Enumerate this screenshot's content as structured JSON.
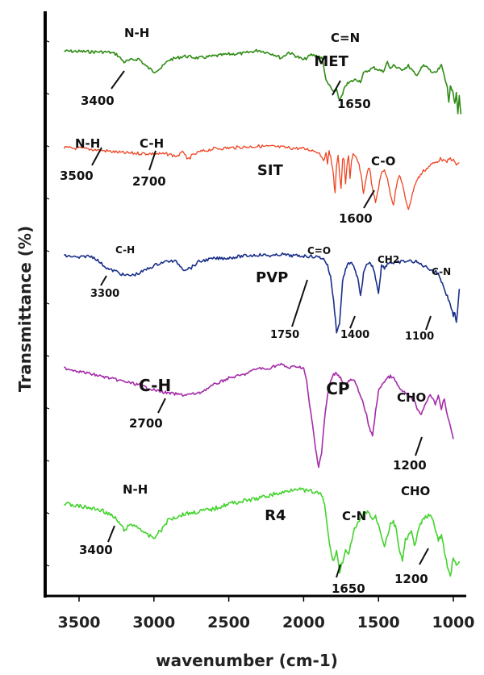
{
  "chart_data": {
    "type": "line",
    "title": "",
    "xlabel": "wavenumber (cm-1)",
    "ylabel": "Transmittance (%)",
    "x_ticks": [
      3500,
      3000,
      2500,
      2000,
      1500,
      1000
    ],
    "xlim": [
      3600,
      900
    ],
    "x_reversed": true,
    "y_ticks_labeled": false,
    "grid": false,
    "series": [
      {
        "name": "MET",
        "color": "#2e8b13",
        "stroke_width": 1.6,
        "label_font": 18,
        "x": [
          3600,
          3500,
          3400,
          3350,
          3300,
          3250,
          3200,
          3150,
          3100,
          3050,
          3000,
          2950,
          2900,
          2800,
          2700,
          2600,
          2500,
          2400,
          2300,
          2200,
          2150,
          2100,
          2000,
          1950,
          1900,
          1880,
          1870,
          1850,
          1820,
          1800,
          1780,
          1760,
          1740,
          1720,
          1700,
          1680,
          1650,
          1620,
          1600,
          1560,
          1530,
          1500,
          1470,
          1440,
          1420,
          1400,
          1380,
          1350,
          1320,
          1300,
          1270,
          1250,
          1220,
          1200,
          1170,
          1150,
          1120,
          1100,
          1080,
          1060,
          1050,
          1040,
          1030,
          1020,
          1010,
          1000,
          990,
          980,
          970,
          960,
          950
        ],
        "y": [
          0.32,
          0.33,
          0.34,
          0.34,
          0.35,
          0.4,
          0.6,
          0.55,
          0.52,
          0.72,
          0.85,
          0.75,
          0.55,
          0.45,
          0.5,
          0.45,
          0.4,
          0.38,
          0.3,
          0.4,
          0.5,
          0.35,
          0.55,
          0.42,
          0.45,
          0.5,
          0.6,
          1.1,
          1.25,
          1.4,
          1.3,
          1.6,
          1.45,
          1.2,
          1.15,
          1.1,
          1.05,
          1.1,
          0.9,
          0.8,
          0.75,
          0.8,
          0.85,
          0.6,
          0.8,
          0.65,
          0.75,
          0.8,
          0.75,
          0.7,
          0.85,
          0.95,
          0.8,
          0.7,
          0.75,
          0.85,
          0.9,
          0.8,
          0.7,
          0.95,
          1.1,
          1.3,
          1.6,
          1.2,
          1.3,
          1.45,
          1.7,
          1.4,
          1.9,
          1.5,
          1.95
        ],
        "label": "MET",
        "label_x": 1930,
        "peaks": [
          {
            "top": "N-H",
            "x": 3300,
            "depth": 0.1,
            "stem_from": 3340,
            "stem_to": 3400,
            "number": "3400"
          },
          {
            "top": "C=N",
            "x": 1760,
            "depth": 0.1,
            "stem_from": 1620,
            "stem_to": 1650,
            "number": "1650"
          }
        ]
      },
      {
        "name": "SIT",
        "color": "#ee4422",
        "stroke_width": 1.3,
        "label_font": 18,
        "x": [
          3600,
          3500,
          3400,
          3300,
          3200,
          3100,
          3000,
          2900,
          2850,
          2800,
          2790,
          2780,
          2750,
          2700,
          2600,
          2500,
          2400,
          2300,
          2200,
          2100,
          2000,
          1950,
          1900,
          1880,
          1860,
          1850,
          1840,
          1830,
          1820,
          1810,
          1800,
          1790,
          1780,
          1770,
          1760,
          1750,
          1740,
          1730,
          1720,
          1710,
          1700,
          1690,
          1680,
          1670,
          1650,
          1630,
          1610,
          1600,
          1580,
          1560,
          1540,
          1520,
          1500,
          1480,
          1460,
          1440,
          1420,
          1400,
          1380,
          1360,
          1340,
          1320,
          1300,
          1280,
          1260,
          1240,
          1220,
          1200,
          1180,
          1150,
          1120,
          1100,
          1080,
          1050,
          1020,
          1000,
          980,
          960
        ],
        "y": [
          0.2,
          0.21,
          0.24,
          0.28,
          0.32,
          0.33,
          0.34,
          0.35,
          0.4,
          0.3,
          0.35,
          0.5,
          0.4,
          0.3,
          0.22,
          0.2,
          0.18,
          0.16,
          0.17,
          0.2,
          0.22,
          0.25,
          0.3,
          0.4,
          0.5,
          0.3,
          0.55,
          0.3,
          0.4,
          0.6,
          0.9,
          1.3,
          0.6,
          0.35,
          0.8,
          1.2,
          0.5,
          0.45,
          1.1,
          0.6,
          0.4,
          0.9,
          0.5,
          0.35,
          0.45,
          0.6,
          1.0,
          1.3,
          0.85,
          0.65,
          1.2,
          1.5,
          1.15,
          0.8,
          0.7,
          0.95,
          1.3,
          1.55,
          1.1,
          0.85,
          1.05,
          1.45,
          1.65,
          1.4,
          1.1,
          0.95,
          0.85,
          0.75,
          0.7,
          0.6,
          0.55,
          0.5,
          0.45,
          0.55,
          0.45,
          0.5,
          0.6,
          0.55
        ],
        "label": "SIT",
        "label_x": 2310,
        "peaks": [
          {
            "top": "N-H",
            "x": 3400,
            "depth": 0.05,
            "stem_from": 3400,
            "stem_to": 3500,
            "number": "3500"
          },
          {
            "top": "C-H",
            "x": 2780,
            "depth": 0.05,
            "stem_from": 2820,
            "stem_to": 2700,
            "number": "2700"
          },
          {
            "top": "C-O",
            "x": 1550,
            "depth": 0.05,
            "stem_from": 1520,
            "stem_to": 1600,
            "number": "1600"
          }
        ]
      },
      {
        "name": "PVP",
        "color": "#1a2f8a",
        "stroke_width": 1.6,
        "label_font": 18,
        "x": [
          3600,
          3550,
          3500,
          3450,
          3400,
          3350,
          3300,
          3250,
          3200,
          3150,
          3100,
          3050,
          3000,
          2950,
          2900,
          2850,
          2800,
          2750,
          2700,
          2650,
          2600,
          2500,
          2400,
          2300,
          2250,
          2200,
          2150,
          2100,
          2000,
          1950,
          1900,
          1880,
          1860,
          1840,
          1820,
          1800,
          1780,
          1760,
          1740,
          1720,
          1700,
          1680,
          1660,
          1640,
          1620,
          1600,
          1580,
          1560,
          1540,
          1520,
          1500,
          1480,
          1460,
          1440,
          1420,
          1400,
          1350,
          1300,
          1250,
          1200,
          1150,
          1100,
          1080,
          1060,
          1040,
          1020,
          1000,
          990,
          980,
          970,
          960
        ],
        "y": [
          0.05,
          0.06,
          0.1,
          0.05,
          0.08,
          0.25,
          0.4,
          0.45,
          0.55,
          0.55,
          0.5,
          0.4,
          0.3,
          0.22,
          0.18,
          0.2,
          0.4,
          0.35,
          0.2,
          0.15,
          0.12,
          0.1,
          0.05,
          0.02,
          0.03,
          0.05,
          0.0,
          0.04,
          0.05,
          0.06,
          0.08,
          0.1,
          0.15,
          0.3,
          0.6,
          1.2,
          2.0,
          1.8,
          0.7,
          0.4,
          0.25,
          0.2,
          0.4,
          0.6,
          1.1,
          0.5,
          0.3,
          0.25,
          0.3,
          0.6,
          1.0,
          0.3,
          0.35,
          0.25,
          0.2,
          0.25,
          0.2,
          0.18,
          0.2,
          0.3,
          0.4,
          0.5,
          0.7,
          0.9,
          1.1,
          1.3,
          1.6,
          1.5,
          1.8,
          1.4,
          0.9
        ],
        "label": "PVP",
        "label_x": 2320,
        "peaks": [
          {
            "top": "C-H",
            "x": 3180,
            "depth": 0.05,
            "stem_from": 3180,
            "stem_to": 3300,
            "number": "3300",
            "small": true
          },
          {
            "top": "C=O",
            "x": 1790,
            "depth": 0.0,
            "stem_from": 1830,
            "stem_to": 1870,
            "number": "1750",
            "small": true
          },
          {
            "top": "CH2",
            "x": 1460,
            "depth": 0.0,
            "stem_from": 1520,
            "stem_to": 1480,
            "number": "1400",
            "small": true
          },
          {
            "top": "C-N",
            "x": 1000,
            "depth": 0.0,
            "stem_from": 1020,
            "stem_to": 1060,
            "number": "1100",
            "small": true
          }
        ]
      },
      {
        "name": "CP",
        "color": "#a42ca8",
        "stroke_width": 1.6,
        "label_font": 20,
        "x": [
          3600,
          3500,
          3400,
          3300,
          3200,
          3100,
          3000,
          2900,
          2800,
          2700,
          2600,
          2500,
          2400,
          2350,
          2300,
          2250,
          2200,
          2150,
          2100,
          2050,
          2000,
          1980,
          1960,
          1940,
          1920,
          1900,
          1880,
          1860,
          1840,
          1820,
          1800,
          1780,
          1760,
          1740,
          1720,
          1700,
          1680,
          1660,
          1640,
          1620,
          1600,
          1580,
          1560,
          1540,
          1520,
          1500,
          1480,
          1460,
          1440,
          1420,
          1400,
          1380,
          1360,
          1340,
          1320,
          1300,
          1280,
          1260,
          1240,
          1220,
          1200,
          1180,
          1160,
          1140,
          1120,
          1100,
          1080,
          1060,
          1040,
          1020,
          1000
        ],
        "y": [
          0.1,
          0.2,
          0.3,
          0.4,
          0.5,
          0.6,
          0.75,
          0.85,
          0.9,
          0.85,
          0.6,
          0.4,
          0.3,
          0.2,
          0.1,
          0.15,
          0.05,
          0.0,
          0.1,
          0.05,
          0.1,
          0.5,
          1.2,
          1.8,
          2.5,
          3.0,
          2.6,
          1.6,
          0.9,
          0.5,
          0.3,
          0.25,
          0.35,
          0.5,
          0.6,
          0.5,
          0.45,
          0.5,
          0.7,
          0.9,
          1.2,
          1.5,
          1.9,
          2.1,
          1.4,
          0.8,
          0.6,
          0.5,
          0.4,
          0.35,
          0.4,
          0.55,
          0.7,
          0.8,
          0.85,
          0.9,
          1.0,
          1.1,
          1.3,
          1.5,
          1.3,
          1.1,
          0.9,
          0.95,
          1.2,
          0.9,
          1.3,
          1.0,
          1.5,
          1.8,
          2.2
        ],
        "label": "CP",
        "label_x": 1850,
        "peaks": [
          {
            "top": "C-H",
            "x": 2870,
            "depth": 0.0,
            "stem_from": 2840,
            "stem_to": 2880,
            "number": "2700",
            "big": true
          },
          {
            "top": "CHO",
            "x": 1150,
            "depth": 0.0,
            "stem_from": 1200,
            "stem_to": 1220,
            "number": "1200"
          }
        ]
      },
      {
        "name": "R4",
        "color": "#42d32c",
        "stroke_width": 1.6,
        "label_font": 18,
        "x": [
          3600,
          3500,
          3400,
          3350,
          3300,
          3250,
          3200,
          3150,
          3100,
          3050,
          3000,
          2950,
          2900,
          2800,
          2700,
          2600,
          2500,
          2400,
          2300,
          2200,
          2150,
          2100,
          2050,
          2000,
          1950,
          1900,
          1880,
          1860,
          1840,
          1820,
          1800,
          1780,
          1760,
          1740,
          1720,
          1700,
          1680,
          1660,
          1640,
          1620,
          1600,
          1580,
          1560,
          1540,
          1520,
          1500,
          1480,
          1460,
          1440,
          1420,
          1400,
          1380,
          1360,
          1340,
          1320,
          1300,
          1280,
          1260,
          1240,
          1220,
          1200,
          1180,
          1160,
          1140,
          1120,
          1100,
          1080,
          1060,
          1040,
          1020,
          1000,
          980,
          960
        ],
        "y": [
          0.3,
          0.35,
          0.4,
          0.42,
          0.5,
          0.6,
          0.8,
          0.7,
          0.75,
          0.9,
          0.95,
          0.8,
          0.6,
          0.5,
          0.45,
          0.4,
          0.3,
          0.25,
          0.2,
          0.12,
          0.1,
          0.05,
          0.0,
          0.05,
          0.07,
          0.1,
          0.15,
          0.3,
          0.8,
          1.2,
          1.4,
          1.2,
          1.6,
          1.4,
          1.2,
          1.3,
          1.0,
          0.8,
          0.7,
          0.6,
          0.5,
          0.45,
          0.5,
          0.6,
          0.55,
          0.7,
          0.9,
          1.1,
          0.9,
          0.7,
          0.65,
          0.8,
          1.2,
          1.4,
          1.0,
          0.9,
          0.85,
          1.1,
          0.9,
          0.7,
          0.6,
          0.55,
          0.5,
          0.6,
          0.8,
          1.0,
          0.9,
          1.2,
          1.5,
          1.7,
          1.3,
          1.5,
          1.4
        ],
        "label": "R4",
        "label_x": 2260,
        "peaks": [
          {
            "top": "N-H",
            "x": 3150,
            "depth": 0.0,
            "stem_from": 3250,
            "stem_to": 3300,
            "number": "3400"
          },
          {
            "top": "C-N",
            "x": 1590,
            "depth": 0.0,
            "stem_from": 1660,
            "stem_to": 1680,
            "number": "1650"
          },
          {
            "top": "CHO",
            "x": 1120,
            "depth": 0.0,
            "stem_from": 1140,
            "stem_to": 1170,
            "number": "1200"
          }
        ]
      }
    ]
  }
}
